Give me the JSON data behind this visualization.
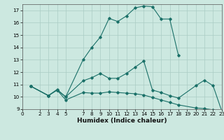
{
  "xlabel": "Humidex (Indice chaleur)",
  "bg_color": "#cce8e0",
  "grid_color": "#aaccc4",
  "line_color": "#1a7068",
  "xlim": [
    0,
    23
  ],
  "ylim": [
    9,
    17.5
  ],
  "xticks": [
    0,
    2,
    3,
    4,
    5,
    7,
    8,
    9,
    10,
    11,
    12,
    13,
    14,
    15,
    16,
    17,
    18,
    19,
    20,
    21,
    22,
    23
  ],
  "yticks": [
    9,
    10,
    11,
    12,
    13,
    14,
    15,
    16,
    17
  ],
  "line1_x": [
    1,
    3,
    4,
    5,
    7,
    8,
    9,
    10,
    11,
    12,
    13,
    14,
    15,
    16,
    17,
    18
  ],
  "line1_y": [
    10.85,
    10.1,
    10.55,
    10.0,
    13.0,
    14.0,
    14.85,
    16.35,
    16.1,
    16.55,
    17.2,
    17.35,
    17.3,
    16.3,
    16.3,
    13.35
  ],
  "line2_x": [
    1,
    3,
    4,
    5,
    7,
    8,
    9,
    10,
    11,
    12,
    13,
    14,
    15,
    16,
    17,
    18,
    20,
    21,
    22,
    23
  ],
  "line2_y": [
    10.85,
    10.1,
    10.6,
    10.0,
    11.3,
    11.55,
    11.9,
    11.5,
    11.5,
    11.9,
    12.4,
    12.9,
    10.55,
    10.35,
    10.1,
    9.9,
    10.9,
    11.35,
    10.9,
    8.85
  ],
  "line3_x": [
    1,
    3,
    4,
    5,
    7,
    8,
    9,
    10,
    11,
    12,
    13,
    14,
    15,
    16,
    17,
    18,
    20,
    21,
    22,
    23
  ],
  "line3_y": [
    10.85,
    10.1,
    10.55,
    9.75,
    10.35,
    10.3,
    10.3,
    10.4,
    10.35,
    10.3,
    10.25,
    10.15,
    9.95,
    9.75,
    9.55,
    9.35,
    9.1,
    9.05,
    8.95,
    8.85
  ],
  "figsize": [
    3.2,
    2.0
  ],
  "dpi": 100,
  "label_fontsize": 6.5,
  "tick_fontsize": 5.2
}
